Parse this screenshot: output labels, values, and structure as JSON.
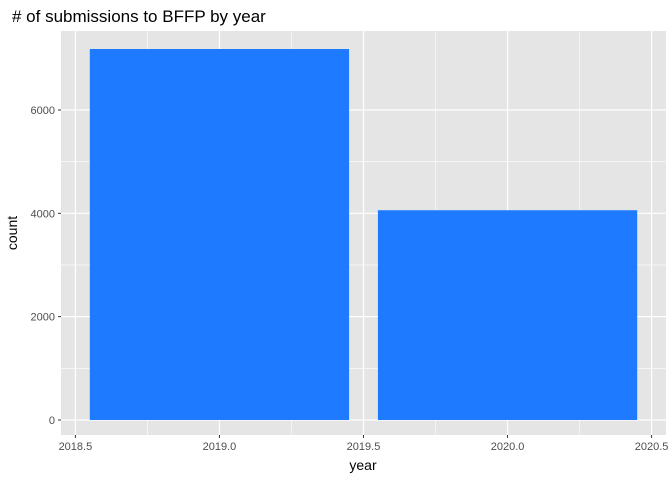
{
  "chart_data": {
    "type": "bar",
    "title": "# of submissions to BFFP by year",
    "xlabel": "year",
    "ylabel": "count",
    "x": [
      2019.0,
      2020.0
    ],
    "values": [
      7180,
      4060
    ],
    "bar_width": 0.9,
    "xlim": [
      2018.5,
      2020.5
    ],
    "ylim": [
      0,
      7200
    ],
    "x_ticks": [
      2018.5,
      2019.0,
      2019.5,
      2020.0,
      2020.5
    ],
    "x_tick_labels": [
      "2018.5",
      "2019.0",
      "2019.5",
      "2020.0",
      "2020.5"
    ],
    "y_ticks": [
      0,
      2000,
      4000,
      6000
    ],
    "y_tick_labels": [
      "0",
      "2000",
      "4000",
      "6000"
    ],
    "grid": true,
    "legend": "none",
    "colors": {
      "bar": "#1e7bff",
      "panel": "#e5e5e5",
      "grid": "#ffffff"
    }
  }
}
